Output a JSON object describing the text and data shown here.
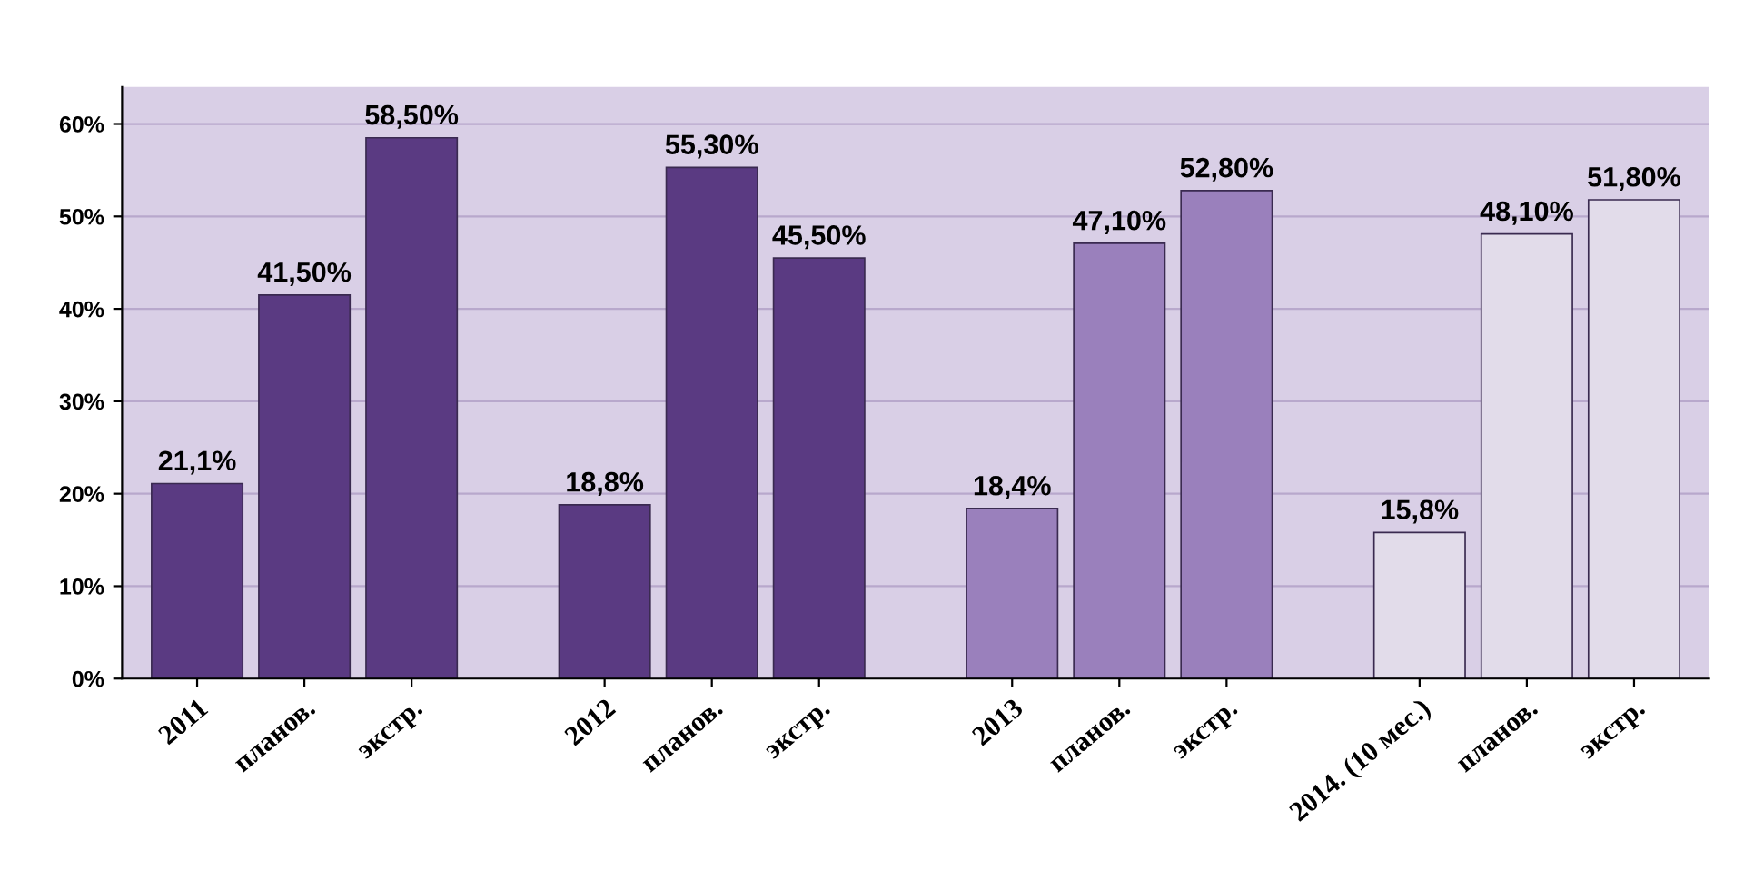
{
  "chart_data": {
    "type": "bar",
    "categories": [
      "2011",
      "планов.",
      "экстр.",
      "2012",
      "планов.",
      "экстр.",
      "2013",
      "планов.",
      "экстр.",
      "2014. (10 мес.)",
      "планов.",
      "экстр."
    ],
    "values": [
      21.1,
      41.5,
      58.5,
      18.8,
      55.3,
      45.5,
      18.4,
      47.1,
      52.8,
      15.8,
      48.1,
      51.8
    ],
    "colors": [
      "#5a3a82",
      "#5a3a82",
      "#5a3a82",
      "#5a3a82",
      "#5a3a82",
      "#5a3a82",
      "#9a80bc",
      "#9a80bc",
      "#9a80bc",
      "#e2dcea",
      "#e2dcea",
      "#e2dcea"
    ],
    "value_labels": [
      "21,1%",
      "41,50%",
      "58,50%",
      "18,8%",
      "55,30%",
      "45,50%",
      "18,4%",
      "47,10%",
      "52,80%",
      "15,8%",
      "48,10%",
      "51,80%"
    ],
    "ylim": [
      0,
      64
    ],
    "yticks": [
      {
        "value": 0,
        "label": "0%"
      },
      {
        "value": 10,
        "label": "10%"
      },
      {
        "value": 20,
        "label": "20%"
      },
      {
        "value": 30,
        "label": "30%"
      },
      {
        "value": 40,
        "label": "40%"
      },
      {
        "value": 50,
        "label": "50%"
      },
      {
        "value": 60,
        "label": "60%"
      }
    ],
    "grid": "y"
  }
}
